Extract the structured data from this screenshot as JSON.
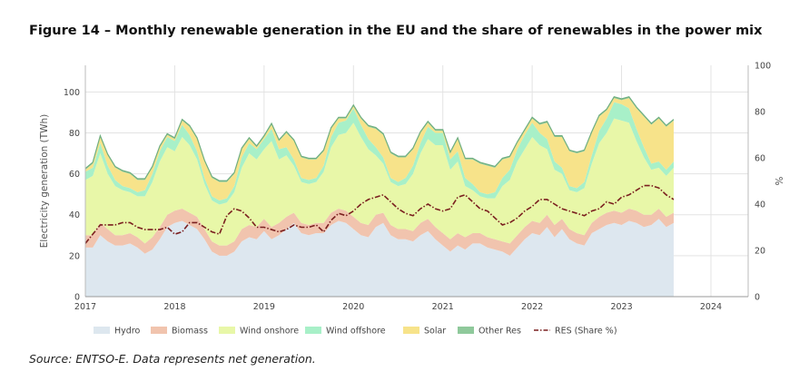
{
  "title": "Figure 14 – Monthly renewable generation in the EU and the share of renewables in the power mix",
  "source": "Source: ENTSO-E. Data represents net generation.",
  "chart_data": {
    "type": "area",
    "title": "Figure 14 – Monthly renewable generation in the EU and the share of renewables in the power mix",
    "ylabel": "Electricity generation (TWh)",
    "y2label": "%",
    "ylim": [
      0,
      113
    ],
    "y2lim": [
      0,
      100
    ],
    "yticks": [
      0,
      20,
      40,
      60,
      80,
      100
    ],
    "y2ticks": [
      0,
      20,
      40,
      60,
      80,
      100
    ],
    "xlim": [
      "2017-01",
      "2024-06"
    ],
    "xticks": [
      "2017",
      "2018",
      "2019",
      "2020",
      "2021",
      "2022",
      "2023",
      "2024"
    ],
    "grid": true,
    "legend_position": "bottom",
    "x_start": "2017-01",
    "stacked": true,
    "series": [
      {
        "name": "Hydro",
        "color": "#dde7ef",
        "values": [
          24,
          24,
          30,
          27,
          25,
          25,
          26,
          24,
          21,
          23,
          28,
          34,
          36,
          37,
          35,
          33,
          28,
          22,
          20,
          20,
          22,
          27,
          29,
          28,
          32,
          28,
          30,
          33,
          36,
          31,
          30,
          31,
          31,
          35,
          37,
          36,
          33,
          30,
          29,
          34,
          36,
          30,
          28,
          28,
          27,
          30,
          32,
          28,
          25,
          22,
          25,
          23,
          26,
          26,
          24,
          23,
          22,
          20,
          24,
          28,
          31,
          30,
          34,
          29,
          33,
          28,
          26,
          25,
          31,
          33,
          35,
          36,
          35,
          37,
          36,
          34,
          35,
          38,
          34,
          36
        ]
      },
      {
        "name": "Biomass",
        "color": "#f1c4ae",
        "values": [
          6,
          6,
          6,
          6,
          5,
          5,
          5,
          5,
          5,
          6,
          6,
          6,
          6,
          6,
          6,
          6,
          5,
          5,
          5,
          5,
          5,
          6,
          6,
          6,
          6,
          6,
          6,
          6,
          5,
          5,
          5,
          5,
          5,
          6,
          6,
          6,
          6,
          6,
          6,
          6,
          5,
          5,
          5,
          5,
          5,
          6,
          6,
          6,
          6,
          6,
          6,
          6,
          5,
          5,
          5,
          5,
          5,
          6,
          6,
          6,
          6,
          6,
          6,
          6,
          5,
          5,
          5,
          5,
          5,
          6,
          6,
          6,
          6,
          6,
          6,
          6,
          5,
          5,
          5,
          5
        ]
      },
      {
        "name": "Wind onshore",
        "color": "#e8f7a8",
        "values": [
          27,
          29,
          34,
          27,
          24,
          22,
          20,
          20,
          23,
          27,
          32,
          33,
          29,
          35,
          33,
          28,
          22,
          20,
          20,
          21,
          24,
          30,
          35,
          33,
          34,
          42,
          31,
          30,
          23,
          20,
          20,
          20,
          25,
          32,
          36,
          38,
          46,
          42,
          37,
          29,
          24,
          21,
          21,
          22,
          28,
          34,
          39,
          40,
          43,
          34,
          35,
          25,
          21,
          18,
          19,
          20,
          27,
          31,
          36,
          38,
          41,
          38,
          32,
          27,
          22,
          19,
          20,
          23,
          29,
          36,
          39,
          45,
          45,
          42,
          34,
          28,
          22,
          20,
          20,
          22
        ]
      },
      {
        "name": "Wind offshore",
        "color": "#a8f0c8",
        "values": [
          4,
          4,
          5,
          4,
          3,
          2,
          2,
          2,
          3,
          4,
          5,
          5,
          5,
          6,
          5,
          4,
          3,
          2,
          2,
          2,
          3,
          5,
          5,
          5,
          5,
          6,
          5,
          4,
          3,
          2,
          2,
          2,
          3,
          5,
          6,
          6,
          7,
          6,
          5,
          4,
          3,
          2,
          2,
          3,
          4,
          5,
          6,
          6,
          6,
          5,
          5,
          4,
          3,
          2,
          2,
          3,
          4,
          5,
          6,
          7,
          7,
          6,
          5,
          4,
          3,
          2,
          2,
          3,
          4,
          6,
          7,
          8,
          8,
          7,
          6,
          5,
          3,
          3,
          3,
          3
        ]
      },
      {
        "name": "Solar",
        "color": "#f7e38a",
        "values": [
          1,
          2,
          3,
          5,
          6,
          7,
          7,
          6,
          5,
          3,
          2,
          1,
          1,
          2,
          4,
          6,
          8,
          9,
          9,
          8,
          6,
          4,
          2,
          1,
          1,
          2,
          4,
          7,
          9,
          10,
          10,
          9,
          7,
          4,
          2,
          1,
          1,
          3,
          6,
          9,
          11,
          12,
          12,
          10,
          8,
          5,
          2,
          1,
          1,
          3,
          6,
          9,
          12,
          14,
          14,
          12,
          9,
          6,
          3,
          2,
          2,
          4,
          8,
          12,
          15,
          17,
          17,
          15,
          11,
          7,
          4,
          2,
          2,
          5,
          10,
          15,
          19,
          21,
          21,
          20
        ]
      },
      {
        "name": "Other Res",
        "color": "#8fc99b",
        "values": [
          0.6,
          0.6,
          0.6,
          0.6,
          0.6,
          0.6,
          0.6,
          0.6,
          0.6,
          0.6,
          0.6,
          0.6,
          0.6,
          0.6,
          0.6,
          0.6,
          0.6,
          0.6,
          0.6,
          0.6,
          0.6,
          0.6,
          0.6,
          0.6,
          0.6,
          0.6,
          0.6,
          0.6,
          0.6,
          0.6,
          0.6,
          0.6,
          0.6,
          0.6,
          0.6,
          0.6,
          0.6,
          0.6,
          0.6,
          0.6,
          0.6,
          0.6,
          0.6,
          0.6,
          0.6,
          0.6,
          0.6,
          0.6,
          0.6,
          0.6,
          0.6,
          0.6,
          0.6,
          0.6,
          0.6,
          0.6,
          0.6,
          0.6,
          0.6,
          0.6,
          0.6,
          0.6,
          0.6,
          0.6,
          0.6,
          0.6,
          0.6,
          0.6,
          0.6,
          0.6,
          0.6,
          0.6,
          0.6,
          0.6,
          0.6,
          0.6,
          0.6,
          0.6,
          0.6,
          0.6
        ]
      },
      {
        "name": "RES (Share %)",
        "color": "#7a1f1f",
        "type": "line",
        "axis": "right",
        "values": [
          23,
          27,
          31,
          31,
          31,
          32,
          32,
          30,
          29,
          29,
          29,
          30,
          27,
          28,
          32,
          32,
          30,
          28,
          27,
          35,
          38,
          37,
          34,
          30,
          30,
          29,
          28,
          29,
          31,
          30,
          30,
          31,
          28,
          33,
          36,
          35,
          37,
          40,
          42,
          43,
          44,
          41,
          38,
          36,
          35,
          38,
          40,
          38,
          37,
          38,
          43,
          44,
          41,
          38,
          37,
          34,
          31,
          32,
          34,
          37,
          39,
          42,
          42,
          40,
          38,
          37,
          36,
          35,
          37,
          38,
          41,
          40,
          43,
          44,
          46,
          48,
          48,
          47,
          44,
          42
        ]
      }
    ]
  }
}
